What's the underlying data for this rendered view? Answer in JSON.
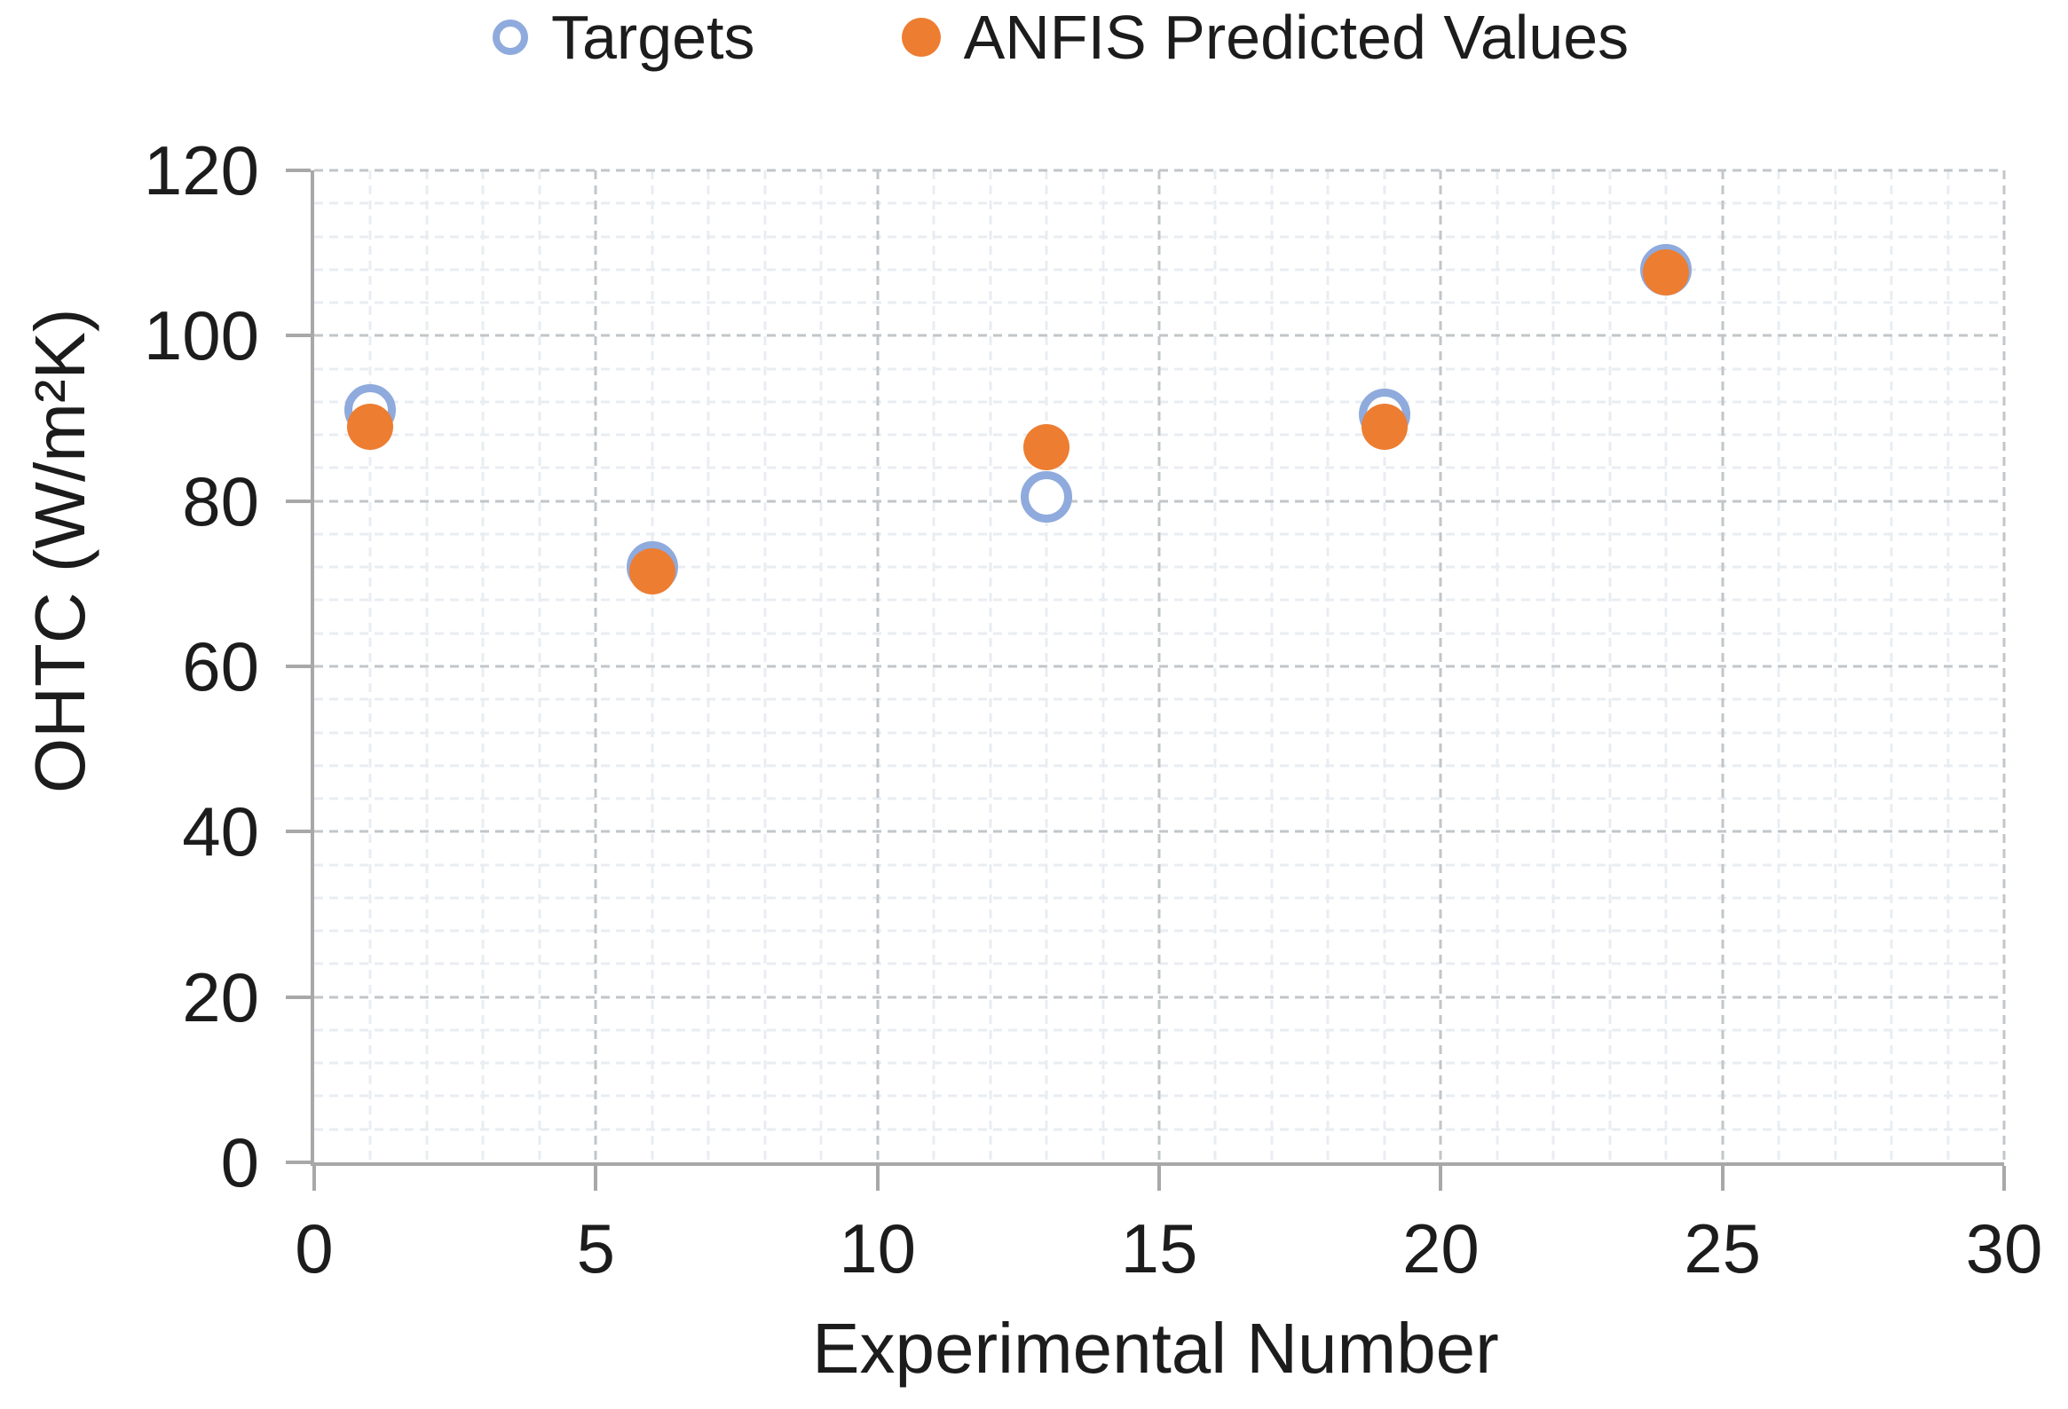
{
  "legend": {
    "items": [
      {
        "label": "Targets",
        "marker": "open-circle",
        "color": "#8FAADC"
      },
      {
        "label": "ANFIS Predicted Values",
        "marker": "filled-circle",
        "color": "#ED7D31"
      }
    ]
  },
  "chart_data": {
    "type": "scatter",
    "title": "",
    "xlabel": "Experimental Number",
    "ylabel": "OHTC (W/m²K)",
    "xlim": [
      0,
      30
    ],
    "ylim": [
      0,
      120
    ],
    "x_ticks": [
      0,
      5,
      10,
      15,
      20,
      25,
      30
    ],
    "y_ticks": [
      0,
      20,
      40,
      60,
      80,
      100,
      120
    ],
    "x_minor_step": 1,
    "y_minor_step": 4,
    "grid": true,
    "legend_position": "top",
    "axis_color": "#a8a8a8",
    "major_grid_color": "#c2c6c9",
    "minor_grid_color": "#e9edf2",
    "series": [
      {
        "name": "Targets",
        "marker": "open-circle",
        "color": "#8FAADC",
        "points": [
          {
            "x": 1,
            "y": 91
          },
          {
            "x": 6,
            "y": 72
          },
          {
            "x": 13,
            "y": 80.5
          },
          {
            "x": 19,
            "y": 90.5
          },
          {
            "x": 24,
            "y": 108
          }
        ]
      },
      {
        "name": "ANFIS Predicted Values",
        "marker": "filled-circle",
        "color": "#ED7D31",
        "points": [
          {
            "x": 1,
            "y": 89
          },
          {
            "x": 6,
            "y": 71.5
          },
          {
            "x": 13,
            "y": 86.5
          },
          {
            "x": 19,
            "y": 89
          },
          {
            "x": 24,
            "y": 107.7
          }
        ]
      }
    ]
  }
}
